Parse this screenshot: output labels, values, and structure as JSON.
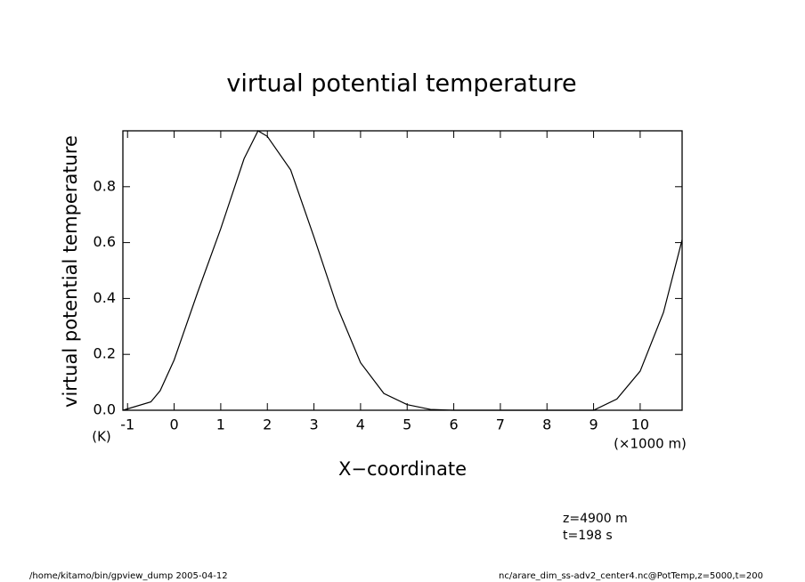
{
  "chart_data": {
    "type": "line",
    "title": "virtual potential temperature",
    "y_label": "virtual potential temperature",
    "y_unit": "(K)",
    "x_label": "X−coordinate",
    "x_unit": "(×1000 m)",
    "annotations": [
      "z=4900 m",
      "t=198 s"
    ],
    "footer_left": "/home/kitamo/bin/gpview_dump  2005-04-12",
    "footer_right": "nc/arare_dim_ss-adv2_center4.nc@PotTemp,z=5000,t=200",
    "x": [
      -1.1,
      -0.5,
      -0.3,
      0,
      0.5,
      1,
      1.5,
      1.8,
      2,
      2.5,
      3,
      3.5,
      4,
      4.5,
      5,
      5.5,
      6,
      7,
      8,
      9,
      9.5,
      10,
      10.5,
      10.9
    ],
    "series": [
      {
        "color": "#000000",
        "values": [
          0.0,
          0.03,
          0.07,
          0.18,
          0.42,
          0.65,
          0.9,
          1.0,
          0.98,
          0.86,
          0.62,
          0.37,
          0.17,
          0.06,
          0.02,
          0.003,
          0.0,
          0.0,
          0.0,
          0.0,
          0.04,
          0.14,
          0.35,
          0.61
        ]
      }
    ],
    "xlim": [
      -1.1,
      10.9
    ],
    "ylim": [
      0,
      1.0
    ],
    "xticks": [
      -1,
      0,
      1,
      2,
      3,
      4,
      5,
      6,
      7,
      8,
      9,
      10
    ],
    "yticks": [
      {
        "value": 0,
        "label": "0.0"
      },
      0.2,
      0.4,
      0.6,
      0.8
    ]
  }
}
